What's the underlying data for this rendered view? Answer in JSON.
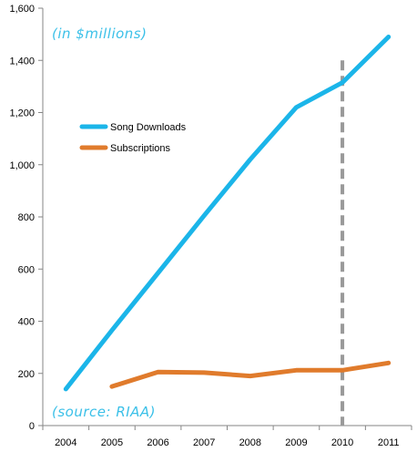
{
  "chart_data": {
    "type": "line",
    "categories": [
      "2004",
      "2005",
      "2006",
      "2007",
      "2008",
      "2009",
      "2010",
      "2011"
    ],
    "ylim": [
      0,
      1600
    ],
    "yticks": [
      "0",
      "200",
      "400",
      "600",
      "800",
      "1,000",
      "1,200",
      "1,400",
      "1,600"
    ],
    "ytick_values": [
      0,
      200,
      400,
      600,
      800,
      1000,
      1200,
      1400,
      1600
    ],
    "series": [
      {
        "name": "Song Downloads",
        "color": "#1bb5e9",
        "values": [
          140,
          365,
          585,
          805,
          1020,
          1220,
          1315,
          1490
        ]
      },
      {
        "name": "Subscriptions",
        "color": "#e07b2c",
        "values": [
          null,
          150,
          205,
          203,
          190,
          212,
          212,
          240
        ]
      }
    ],
    "annotations": {
      "units": "(in $millions)",
      "source": "(source: RIAA)"
    },
    "reference_line": {
      "category": "2010",
      "style": "dashed",
      "color": "#999999"
    },
    "legend_position": "upper-left-inside",
    "grid": false
  }
}
